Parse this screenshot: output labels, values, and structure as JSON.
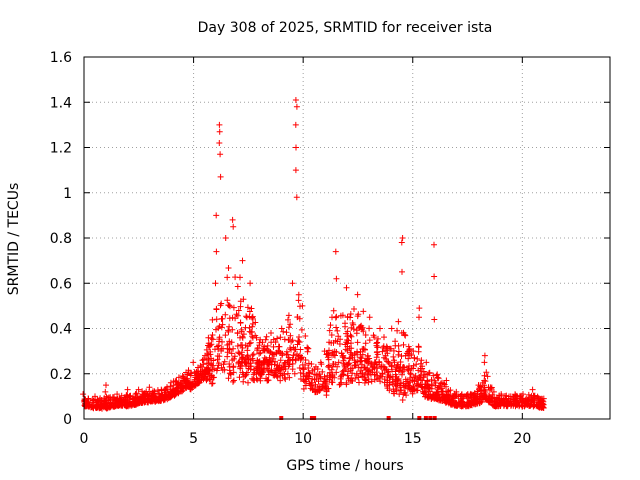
{
  "chart_data": {
    "type": "scatter",
    "title": "Day 308 of 2025, SRMTID for receiver ista",
    "xlabel": "GPS time / hours",
    "ylabel": "SRMTID / TECUs",
    "xlim": [
      0,
      24
    ],
    "ylim": [
      0,
      1.6
    ],
    "xticks": [
      0,
      5,
      10,
      15,
      20
    ],
    "xtick_labels": [
      "0",
      "5",
      "10",
      "15",
      "20"
    ],
    "yticks": [
      0,
      0.2,
      0.4,
      0.6,
      0.8,
      1.0,
      1.2,
      1.4,
      1.6
    ],
    "ytick_labels": [
      "0",
      "0.2",
      "0.4",
      "0.6",
      "0.8",
      "1",
      "1.2",
      "1.4",
      "1.6"
    ],
    "grid": true,
    "marker": "+",
    "series_color": "#ff0000",
    "envelope": [
      {
        "x": 0.0,
        "base": 0.06,
        "spread": 0.04,
        "spikes": [
          0.11
        ]
      },
      {
        "x": 0.5,
        "base": 0.05,
        "spread": 0.04,
        "spikes": [
          0.1
        ]
      },
      {
        "x": 1.0,
        "base": 0.05,
        "spread": 0.05,
        "spikes": [
          0.12,
          0.15
        ]
      },
      {
        "x": 1.5,
        "base": 0.06,
        "spread": 0.04,
        "spikes": [
          0.11
        ]
      },
      {
        "x": 2.0,
        "base": 0.06,
        "spread": 0.05,
        "spikes": [
          0.13
        ]
      },
      {
        "x": 2.5,
        "base": 0.07,
        "spread": 0.05,
        "spikes": [
          0.13
        ]
      },
      {
        "x": 3.0,
        "base": 0.08,
        "spread": 0.05,
        "spikes": [
          0.14
        ]
      },
      {
        "x": 3.5,
        "base": 0.08,
        "spread": 0.05,
        "spikes": [
          0.13
        ]
      },
      {
        "x": 4.0,
        "base": 0.1,
        "spread": 0.06,
        "spikes": [
          0.16
        ]
      },
      {
        "x": 4.5,
        "base": 0.13,
        "spread": 0.07,
        "spikes": [
          0.19
        ]
      },
      {
        "x": 5.0,
        "base": 0.16,
        "spread": 0.08,
        "spikes": [
          0.25
        ]
      },
      {
        "x": 5.5,
        "base": 0.2,
        "spread": 0.09,
        "spikes": [
          0.28
        ]
      },
      {
        "x": 6.0,
        "base": 0.25,
        "spread": 0.3,
        "spikes": [
          0.6,
          0.74,
          0.9
        ]
      },
      {
        "x": 6.2,
        "base": 0.3,
        "spread": 0.35,
        "spikes": [
          1.07,
          1.17,
          1.22,
          1.27,
          1.3
        ]
      },
      {
        "x": 6.5,
        "base": 0.3,
        "spread": 0.4,
        "spikes": [
          0.8
        ]
      },
      {
        "x": 6.8,
        "base": 0.3,
        "spread": 0.45,
        "spikes": [
          0.85,
          0.88
        ]
      },
      {
        "x": 7.2,
        "base": 0.28,
        "spread": 0.35,
        "spikes": [
          0.7
        ]
      },
      {
        "x": 7.6,
        "base": 0.25,
        "spread": 0.3,
        "spikes": [
          0.6
        ]
      },
      {
        "x": 8.0,
        "base": 0.22,
        "spread": 0.15,
        "spikes": [
          0.35
        ]
      },
      {
        "x": 8.5,
        "base": 0.22,
        "spread": 0.15,
        "spikes": [
          0.38
        ]
      },
      {
        "x": 9.0,
        "base": 0.22,
        "spread": 0.18,
        "spikes": [
          0.4
        ]
      },
      {
        "x": 9.5,
        "base": 0.28,
        "spread": 0.3,
        "spikes": [
          0.6
        ]
      },
      {
        "x": 9.7,
        "base": 0.3,
        "spread": 0.4,
        "spikes": [
          0.98,
          1.1,
          1.2,
          1.3,
          1.38,
          1.41
        ]
      },
      {
        "x": 10.0,
        "base": 0.22,
        "spread": 0.25,
        "spikes": [
          0.5
        ]
      },
      {
        "x": 10.5,
        "base": 0.12,
        "spread": 0.1,
        "spikes": [
          0.22
        ]
      },
      {
        "x": 11.0,
        "base": 0.15,
        "spread": 0.15,
        "spikes": [
          0.3
        ]
      },
      {
        "x": 11.5,
        "base": 0.25,
        "spread": 0.35,
        "spikes": [
          0.62,
          0.74
        ]
      },
      {
        "x": 12.0,
        "base": 0.25,
        "spread": 0.3,
        "spikes": [
          0.58
        ]
      },
      {
        "x": 12.5,
        "base": 0.25,
        "spread": 0.28,
        "spikes": [
          0.55
        ]
      },
      {
        "x": 13.0,
        "base": 0.22,
        "spread": 0.22,
        "spikes": [
          0.45
        ]
      },
      {
        "x": 13.5,
        "base": 0.2,
        "spread": 0.2,
        "spikes": [
          0.4
        ]
      },
      {
        "x": 14.0,
        "base": 0.18,
        "spread": 0.18,
        "spikes": [
          0.4
        ]
      },
      {
        "x": 14.5,
        "base": 0.18,
        "spread": 0.3,
        "spikes": [
          0.65,
          0.78,
          0.8
        ]
      },
      {
        "x": 15.0,
        "base": 0.12,
        "spread": 0.15,
        "spikes": [
          0.3
        ]
      },
      {
        "x": 15.3,
        "base": 0.15,
        "spread": 0.2,
        "spikes": [
          0.45,
          0.49
        ]
      },
      {
        "x": 15.6,
        "base": 0.1,
        "spread": 0.1,
        "spikes": [
          0.25
        ]
      },
      {
        "x": 16.0,
        "base": 0.1,
        "spread": 0.12,
        "spikes": [
          0.44,
          0.63,
          0.77
        ]
      },
      {
        "x": 16.5,
        "base": 0.08,
        "spread": 0.08,
        "spikes": [
          0.17
        ]
      },
      {
        "x": 17.0,
        "base": 0.06,
        "spread": 0.05,
        "spikes": [
          0.12
        ]
      },
      {
        "x": 17.5,
        "base": 0.06,
        "spread": 0.05,
        "spikes": [
          0.11
        ]
      },
      {
        "x": 18.0,
        "base": 0.07,
        "spread": 0.06,
        "spikes": [
          0.15
        ]
      },
      {
        "x": 18.3,
        "base": 0.1,
        "spread": 0.14,
        "spikes": [
          0.25,
          0.28
        ]
      },
      {
        "x": 18.7,
        "base": 0.06,
        "spread": 0.05,
        "spikes": [
          0.12
        ]
      },
      {
        "x": 19.0,
        "base": 0.06,
        "spread": 0.05,
        "spikes": [
          0.11
        ]
      },
      {
        "x": 19.5,
        "base": 0.06,
        "spread": 0.05,
        "spikes": [
          0.1
        ]
      },
      {
        "x": 20.0,
        "base": 0.06,
        "spread": 0.05,
        "spikes": [
          0.11
        ]
      },
      {
        "x": 20.5,
        "base": 0.06,
        "spread": 0.05,
        "spikes": [
          0.13
        ]
      },
      {
        "x": 21.0,
        "base": 0.05,
        "spread": 0.04,
        "spikes": [
          0.09
        ]
      }
    ],
    "zero_markers_x": [
      9.0,
      10.4,
      10.5,
      13.9,
      15.3,
      15.6,
      15.8,
      16.0
    ],
    "n_points": 2100
  }
}
